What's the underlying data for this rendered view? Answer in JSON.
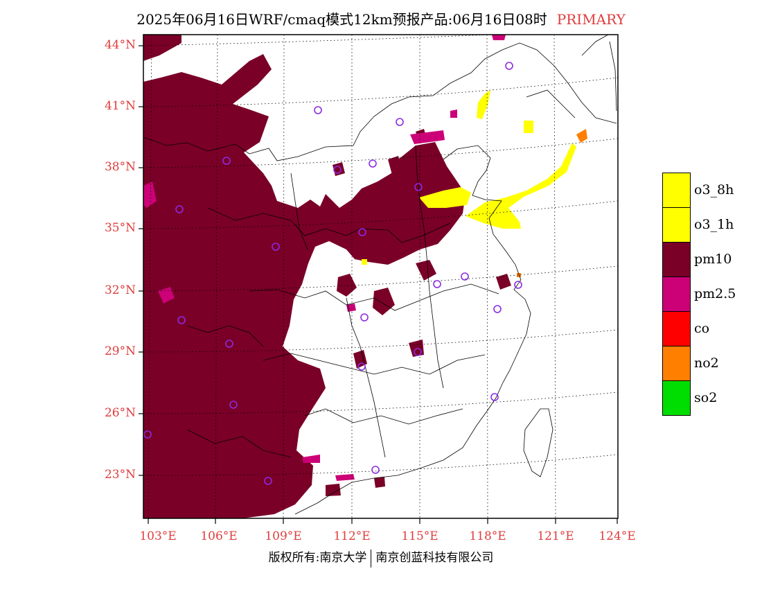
{
  "title": {
    "main": "2025年06月16日WRF/cmaq模式12km预报产品:06月16日08时",
    "tag": "PRIMARY"
  },
  "map": {
    "lat_labels": [
      "44°N",
      "41°N",
      "38°N",
      "35°N",
      "32°N",
      "29°N",
      "26°N",
      "23°N"
    ],
    "lon_labels": [
      "103°E",
      "106°E",
      "109°E",
      "112°E",
      "115°E",
      "118°E",
      "121°E",
      "124°E"
    ],
    "colors": {
      "pm10": "#7a0028",
      "pm25": "#cc0077",
      "o3": "#ffff00",
      "no2": "#ff7f00",
      "station": "#8a2be2",
      "axis_label": "#e03c3c"
    },
    "city_count": 24
  },
  "legend": [
    {
      "label": "o3_8h",
      "color": "#ffff00"
    },
    {
      "label": "o3_1h",
      "color": "#ffff00"
    },
    {
      "label": "pm10",
      "color": "#7a0028"
    },
    {
      "label": "pm2.5",
      "color": "#cc0077"
    },
    {
      "label": "co",
      "color": "#ff0000"
    },
    {
      "label": "no2",
      "color": "#ff7f00"
    },
    {
      "label": "so2",
      "color": "#00dd00"
    }
  ],
  "footer": {
    "left": "版权所有:南京大学",
    "right": "南京创蓝科技有限公司"
  }
}
